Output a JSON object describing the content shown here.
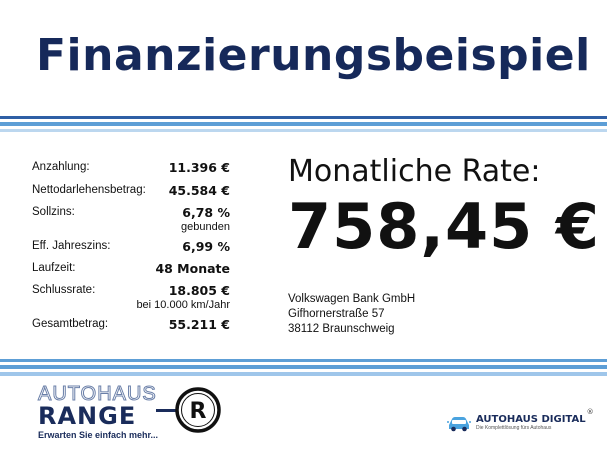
{
  "header": {
    "title": "Finanzierungsbeispiel"
  },
  "terms": [
    {
      "label": "Anzahlung:",
      "value": "11.396 €",
      "note": ""
    },
    {
      "label": "Nettodarlehensbetrag:",
      "value": "45.584 €",
      "note": ""
    },
    {
      "label": "Sollzins:",
      "value": "6,78 %",
      "note": "gebunden"
    },
    {
      "label": "Eff. Jahreszins:",
      "value": "6,99 %",
      "note": ""
    },
    {
      "label": "Laufzeit:",
      "value": "48 Monate",
      "note": ""
    },
    {
      "label": "Schlussrate:",
      "value": "18.805 €",
      "note": "bei 10.000 km/Jahr"
    },
    {
      "label": "Gesamtbetrag:",
      "value": "55.211 €",
      "note": ""
    }
  ],
  "rate": {
    "title": "Monatliche Rate:",
    "value": "758,45 €"
  },
  "bank": {
    "name": "Volkswagen Bank GmbH",
    "street": "Gifhornerstraße 57",
    "city": "38112 Braunschweig"
  },
  "dealer": {
    "name_top": "AUTOHAUS",
    "name_big": "RANGE",
    "slogan": "Erwarten Sie einfach mehr...",
    "logo_letter": "R"
  },
  "partner": {
    "name_a": "AUTOHAUS",
    "name_b": "DIGITAL",
    "tagline": "Die Komplettlösung fürs Autohaus",
    "registered": "®"
  },
  "colors": {
    "navy": "#16295a",
    "stripe_dark": "#2f5fa5",
    "stripe_mid": "#5d9ed6",
    "stripe_light": "#bcd7ef"
  },
  "icons": {
    "dealer_logo": "r-emblem-icon",
    "partner_logo": "car-digital-icon"
  }
}
